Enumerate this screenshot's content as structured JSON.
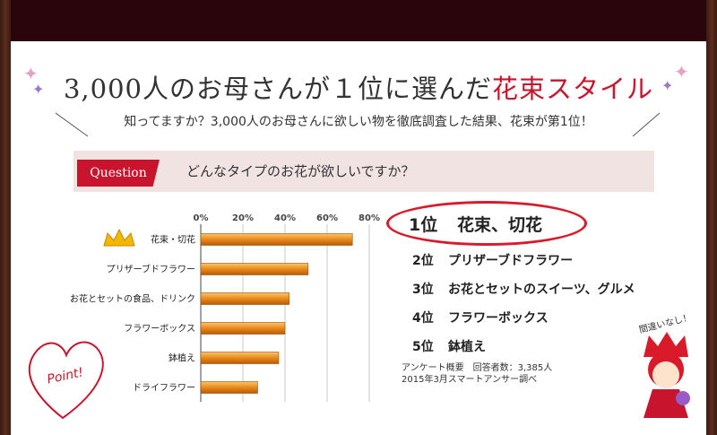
{
  "header": {
    "title_main": "3,000人のお母さんが１位に選んだ",
    "title_accent": "花束スタイル",
    "subtitle": "知ってますか？3,000人のお母さんに欲しい物を徹底調査した結果、花束が第1位！"
  },
  "question": {
    "tag": "Question",
    "text": "どんなタイプのお花が欲しいですか？"
  },
  "chart_data": {
    "type": "bar",
    "orientation": "horizontal",
    "categories": [
      "花束・切花",
      "プリザーブドフラワー",
      "お花とセットの食品、ドリンク",
      "フラワーボックス",
      "鉢植え",
      "ドライフラワー"
    ],
    "values": [
      72,
      51,
      42,
      40,
      37,
      27
    ],
    "xlim": [
      0,
      80
    ],
    "ticks": [
      "0%",
      "20%",
      "40%",
      "60%",
      "80%"
    ],
    "tick_values": [
      0,
      20,
      40,
      60,
      80
    ],
    "grid": true,
    "bar_color": "#e88a1a"
  },
  "ranking": [
    {
      "pos": "1位",
      "label": "花束、切花"
    },
    {
      "pos": "2位",
      "label": "プリザーブドフラワー"
    },
    {
      "pos": "3位",
      "label": "お花とセットのスイーツ、グルメ"
    },
    {
      "pos": "4位",
      "label": "フラワーボックス"
    },
    {
      "pos": "5位",
      "label": "鉢植え"
    }
  ],
  "survey_note": {
    "line1": "アンケート概要　回答者数：3,385人",
    "line2": "2015年3月スマートアンサー調べ"
  },
  "decor": {
    "point_text": "Point!",
    "mascot_speech": "間違いなし！",
    "crown_icon": "crown-icon",
    "heart_icon": "heart-icon",
    "colors": {
      "accent": "#c8142c",
      "bar": "#e88a1a",
      "crown": "#f2b800"
    }
  }
}
